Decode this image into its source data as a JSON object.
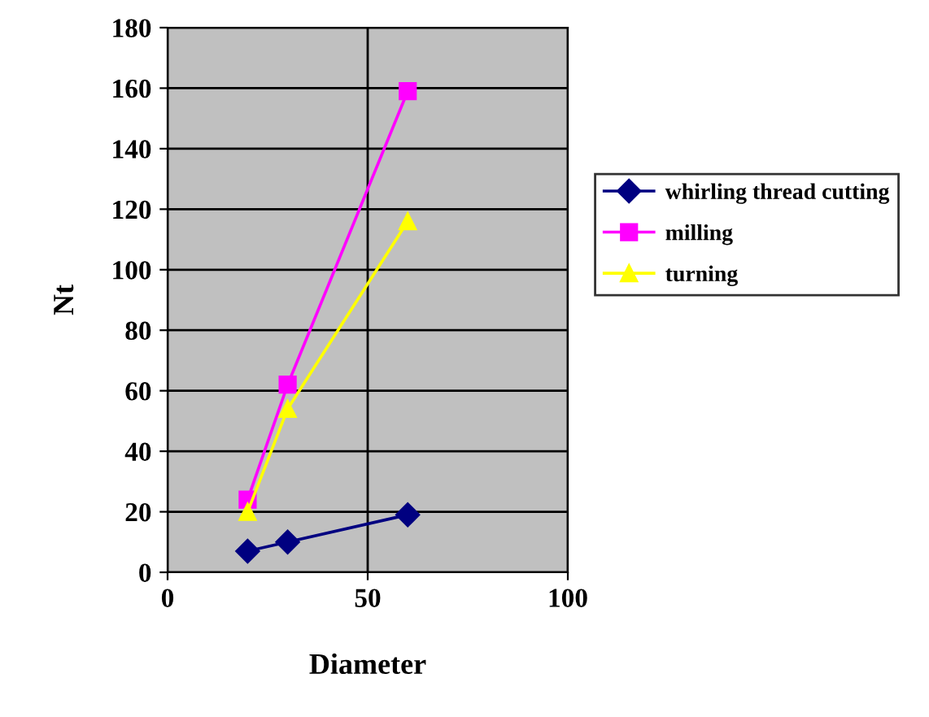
{
  "chart_data": {
    "type": "line",
    "xlabel": "Diameter",
    "ylabel": "Nt",
    "xlim": [
      0,
      100
    ],
    "xticks": [
      0,
      50,
      100
    ],
    "ylim": [
      0,
      180
    ],
    "yticks": [
      0,
      20,
      40,
      60,
      80,
      100,
      120,
      140,
      160,
      180
    ],
    "grid": true,
    "legend": "right",
    "line_style": "solid",
    "series": [
      {
        "name": "whirling thread cutting",
        "color": "#000080",
        "marker": "diamond",
        "x": [
          20,
          30,
          60
        ],
        "values": [
          7,
          10,
          19
        ]
      },
      {
        "name": "milling",
        "color": "#ff00ff",
        "marker": "square",
        "x": [
          20,
          30,
          60
        ],
        "values": [
          24,
          62,
          159
        ]
      },
      {
        "name": "turning",
        "color": "#ffff00",
        "marker": "triangle",
        "x": [
          20,
          30,
          60
        ],
        "values": [
          20,
          54,
          116
        ]
      }
    ]
  }
}
